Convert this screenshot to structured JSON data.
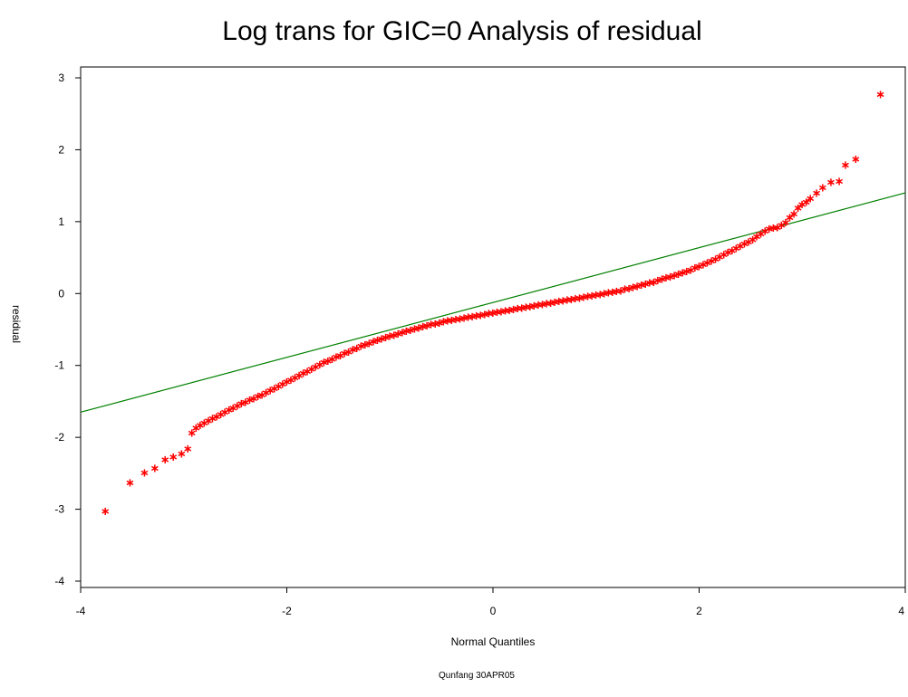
{
  "chart_data": {
    "type": "scatter",
    "title": "Log trans for GIC=0 Analysis of residual",
    "xlabel": "Normal Quantiles",
    "ylabel": "residual",
    "footnote": "Qunfang 30APR05",
    "xlim": [
      -4,
      4
    ],
    "ylim": [
      -4,
      3
    ],
    "x_ticks": [
      -4,
      -2,
      0,
      2,
      4
    ],
    "x_tick_labels": [
      "-4",
      "-2",
      "0",
      "2",
      "4"
    ],
    "y_ticks": [
      -4,
      -3,
      -2,
      -1,
      0,
      1,
      2,
      3
    ],
    "y_tick_labels": [
      "-4",
      "-3",
      "-2",
      "-1",
      "0",
      "1",
      "2",
      "3"
    ],
    "grid": false,
    "marker": "star",
    "marker_color": "#ff0000",
    "line_color": "#008000",
    "reference_line": {
      "x": [
        -4,
        4
      ],
      "y": [
        -1.65,
        1.4
      ]
    },
    "points": [
      {
        "x": -3.76,
        "y": -3.02
      },
      {
        "x": -3.52,
        "y": -2.62
      },
      {
        "x": -3.38,
        "y": -2.48
      },
      {
        "x": -3.28,
        "y": -2.42
      },
      {
        "x": -3.18,
        "y": -2.3
      },
      {
        "x": -3.1,
        "y": -2.26
      },
      {
        "x": -3.02,
        "y": -2.22
      },
      {
        "x": -2.96,
        "y": -2.15
      },
      {
        "x": -2.92,
        "y": -1.93
      },
      {
        "x": -2.88,
        "y": -1.86
      },
      {
        "x": -2.84,
        "y": -1.82
      },
      {
        "x": -2.8,
        "y": -1.79
      },
      {
        "x": -2.76,
        "y": -1.76
      },
      {
        "x": -2.72,
        "y": -1.73
      },
      {
        "x": -2.68,
        "y": -1.7
      },
      {
        "x": -2.64,
        "y": -1.67
      },
      {
        "x": -2.6,
        "y": -1.64
      },
      {
        "x": -2.56,
        "y": -1.61
      },
      {
        "x": -2.52,
        "y": -1.58
      },
      {
        "x": -2.48,
        "y": -1.55
      },
      {
        "x": -2.44,
        "y": -1.52
      },
      {
        "x": -2.4,
        "y": -1.5
      },
      {
        "x": -2.36,
        "y": -1.47
      },
      {
        "x": -2.32,
        "y": -1.45
      },
      {
        "x": -2.28,
        "y": -1.42
      },
      {
        "x": -2.24,
        "y": -1.4
      },
      {
        "x": -2.2,
        "y": -1.37
      },
      {
        "x": -2.16,
        "y": -1.34
      },
      {
        "x": -2.12,
        "y": -1.31
      },
      {
        "x": -2.08,
        "y": -1.28
      },
      {
        "x": -2.04,
        "y": -1.25
      },
      {
        "x": -2.0,
        "y": -1.22
      },
      {
        "x": -1.96,
        "y": -1.19
      },
      {
        "x": -1.92,
        "y": -1.16
      },
      {
        "x": -1.88,
        "y": -1.13
      },
      {
        "x": -1.84,
        "y": -1.1
      },
      {
        "x": -1.8,
        "y": -1.07
      },
      {
        "x": -1.76,
        "y": -1.04
      },
      {
        "x": -1.72,
        "y": -1.01
      },
      {
        "x": -1.68,
        "y": -0.98
      },
      {
        "x": -1.64,
        "y": -0.95
      },
      {
        "x": -1.6,
        "y": -0.93
      },
      {
        "x": -1.56,
        "y": -0.9
      },
      {
        "x": -1.52,
        "y": -0.87
      },
      {
        "x": -1.48,
        "y": -0.85
      },
      {
        "x": -1.44,
        "y": -0.82
      },
      {
        "x": -1.4,
        "y": -0.8
      },
      {
        "x": -1.36,
        "y": -0.77
      },
      {
        "x": -1.32,
        "y": -0.75
      },
      {
        "x": -1.28,
        "y": -0.72
      },
      {
        "x": -1.24,
        "y": -0.7
      },
      {
        "x": -1.2,
        "y": -0.68
      },
      {
        "x": -1.16,
        "y": -0.66
      },
      {
        "x": -1.12,
        "y": -0.64
      },
      {
        "x": -1.08,
        "y": -0.62
      },
      {
        "x": -1.04,
        "y": -0.6
      },
      {
        "x": -1.0,
        "y": -0.58
      },
      {
        "x": -0.96,
        "y": -0.57
      },
      {
        "x": -0.92,
        "y": -0.55
      },
      {
        "x": -0.88,
        "y": -0.53
      },
      {
        "x": -0.84,
        "y": -0.51
      },
      {
        "x": -0.8,
        "y": -0.5
      },
      {
        "x": -0.76,
        "y": -0.48
      },
      {
        "x": -0.72,
        "y": -0.47
      },
      {
        "x": -0.68,
        "y": -0.45
      },
      {
        "x": -0.64,
        "y": -0.44
      },
      {
        "x": -0.6,
        "y": -0.42
      },
      {
        "x": -0.56,
        "y": -0.41
      },
      {
        "x": -0.52,
        "y": -0.4
      },
      {
        "x": -0.48,
        "y": -0.38
      },
      {
        "x": -0.44,
        "y": -0.37
      },
      {
        "x": -0.4,
        "y": -0.36
      },
      {
        "x": -0.36,
        "y": -0.35
      },
      {
        "x": -0.32,
        "y": -0.34
      },
      {
        "x": -0.28,
        "y": -0.33
      },
      {
        "x": -0.24,
        "y": -0.32
      },
      {
        "x": -0.2,
        "y": -0.31
      },
      {
        "x": -0.16,
        "y": -0.3
      },
      {
        "x": -0.12,
        "y": -0.29
      },
      {
        "x": -0.08,
        "y": -0.28
      },
      {
        "x": -0.04,
        "y": -0.27
      },
      {
        "x": 0.0,
        "y": -0.26
      },
      {
        "x": 0.04,
        "y": -0.25
      },
      {
        "x": 0.08,
        "y": -0.24
      },
      {
        "x": 0.12,
        "y": -0.23
      },
      {
        "x": 0.16,
        "y": -0.22
      },
      {
        "x": 0.2,
        "y": -0.21
      },
      {
        "x": 0.24,
        "y": -0.2
      },
      {
        "x": 0.28,
        "y": -0.19
      },
      {
        "x": 0.32,
        "y": -0.18
      },
      {
        "x": 0.36,
        "y": -0.17
      },
      {
        "x": 0.4,
        "y": -0.16
      },
      {
        "x": 0.44,
        "y": -0.15
      },
      {
        "x": 0.48,
        "y": -0.14
      },
      {
        "x": 0.52,
        "y": -0.13
      },
      {
        "x": 0.56,
        "y": -0.12
      },
      {
        "x": 0.6,
        "y": -0.11
      },
      {
        "x": 0.64,
        "y": -0.1
      },
      {
        "x": 0.68,
        "y": -0.09
      },
      {
        "x": 0.72,
        "y": -0.08
      },
      {
        "x": 0.76,
        "y": -0.07
      },
      {
        "x": 0.8,
        "y": -0.06
      },
      {
        "x": 0.84,
        "y": -0.05
      },
      {
        "x": 0.88,
        "y": -0.04
      },
      {
        "x": 0.92,
        "y": -0.03
      },
      {
        "x": 0.96,
        "y": -0.02
      },
      {
        "x": 1.0,
        "y": -0.01
      },
      {
        "x": 1.04,
        "y": 0.0
      },
      {
        "x": 1.08,
        "y": 0.01
      },
      {
        "x": 1.12,
        "y": 0.02
      },
      {
        "x": 1.16,
        "y": 0.03
      },
      {
        "x": 1.2,
        "y": 0.04
      },
      {
        "x": 1.24,
        "y": 0.05
      },
      {
        "x": 1.28,
        "y": 0.07
      },
      {
        "x": 1.32,
        "y": 0.08
      },
      {
        "x": 1.36,
        "y": 0.1
      },
      {
        "x": 1.4,
        "y": 0.11
      },
      {
        "x": 1.44,
        "y": 0.13
      },
      {
        "x": 1.48,
        "y": 0.14
      },
      {
        "x": 1.52,
        "y": 0.16
      },
      {
        "x": 1.56,
        "y": 0.17
      },
      {
        "x": 1.6,
        "y": 0.19
      },
      {
        "x": 1.64,
        "y": 0.21
      },
      {
        "x": 1.68,
        "y": 0.23
      },
      {
        "x": 1.72,
        "y": 0.24
      },
      {
        "x": 1.76,
        "y": 0.26
      },
      {
        "x": 1.8,
        "y": 0.28
      },
      {
        "x": 1.84,
        "y": 0.3
      },
      {
        "x": 1.88,
        "y": 0.32
      },
      {
        "x": 1.92,
        "y": 0.34
      },
      {
        "x": 1.96,
        "y": 0.37
      },
      {
        "x": 2.0,
        "y": 0.39
      },
      {
        "x": 2.04,
        "y": 0.41
      },
      {
        "x": 2.08,
        "y": 0.44
      },
      {
        "x": 2.12,
        "y": 0.46
      },
      {
        "x": 2.16,
        "y": 0.49
      },
      {
        "x": 2.2,
        "y": 0.52
      },
      {
        "x": 2.24,
        "y": 0.55
      },
      {
        "x": 2.28,
        "y": 0.58
      },
      {
        "x": 2.32,
        "y": 0.61
      },
      {
        "x": 2.36,
        "y": 0.64
      },
      {
        "x": 2.4,
        "y": 0.67
      },
      {
        "x": 2.44,
        "y": 0.7
      },
      {
        "x": 2.48,
        "y": 0.73
      },
      {
        "x": 2.52,
        "y": 0.76
      },
      {
        "x": 2.56,
        "y": 0.8
      },
      {
        "x": 2.6,
        "y": 0.84
      },
      {
        "x": 2.64,
        "y": 0.88
      },
      {
        "x": 2.68,
        "y": 0.91
      },
      {
        "x": 2.72,
        "y": 0.92
      },
      {
        "x": 2.76,
        "y": 0.93
      },
      {
        "x": 2.8,
        "y": 0.96
      },
      {
        "x": 2.84,
        "y": 1.0
      },
      {
        "x": 2.88,
        "y": 1.07
      },
      {
        "x": 2.92,
        "y": 1.12
      },
      {
        "x": 2.96,
        "y": 1.2
      },
      {
        "x": 3.0,
        "y": 1.25
      },
      {
        "x": 3.04,
        "y": 1.28
      },
      {
        "x": 3.08,
        "y": 1.33
      },
      {
        "x": 3.14,
        "y": 1.41
      },
      {
        "x": 3.2,
        "y": 1.48
      },
      {
        "x": 3.28,
        "y": 1.56
      },
      {
        "x": 3.36,
        "y": 1.57
      },
      {
        "x": 3.42,
        "y": 1.8
      },
      {
        "x": 3.52,
        "y": 1.88
      },
      {
        "x": 3.76,
        "y": 2.78
      }
    ]
  }
}
